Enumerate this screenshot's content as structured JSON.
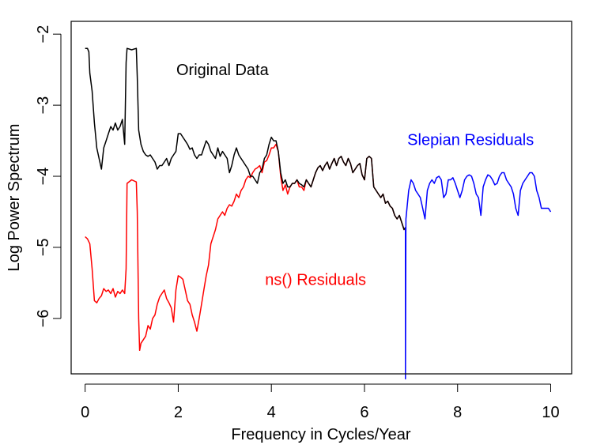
{
  "chart_data": {
    "type": "line",
    "xlabel": "Frequency in Cycles/Year",
    "ylabel": "Log Power Spectrum",
    "xlim": [
      -0.3,
      10.45
    ],
    "ylim": [
      -6.78,
      -1.82
    ],
    "x_ticks": [
      0,
      2,
      4,
      6,
      8,
      10
    ],
    "y_ticks": [
      -2,
      -3,
      -4,
      -5,
      -6
    ],
    "grid": false,
    "annotations": [
      {
        "text": "Original Data",
        "x": 2.95,
        "y": -2.52,
        "color": "#000000"
      },
      {
        "text": "Slepian Residuals",
        "x": 8.28,
        "y": -3.5,
        "color": "#0000ff"
      },
      {
        "text": "ns() Residuals",
        "x": 4.95,
        "y": -5.47,
        "color": "#ff0000"
      }
    ],
    "series": [
      {
        "color": "#ff0000",
        "x": [
          0.0,
          0.05,
          0.1,
          0.15,
          0.2,
          0.25,
          0.3,
          0.35,
          0.4,
          0.45,
          0.5,
          0.55,
          0.6,
          0.65,
          0.7,
          0.75,
          0.8,
          0.85,
          0.88,
          0.9,
          1.0,
          1.1,
          1.12,
          1.15,
          1.17,
          1.2,
          1.25,
          1.3,
          1.35,
          1.4,
          1.45,
          1.5,
          1.55,
          1.6,
          1.65,
          1.7,
          1.75,
          1.8,
          1.85,
          1.9,
          1.95,
          2.0,
          2.05,
          2.1,
          2.15,
          2.2,
          2.25,
          2.3,
          2.35,
          2.4,
          2.45,
          2.5,
          2.55,
          2.6,
          2.65,
          2.7,
          2.75,
          2.8,
          2.85,
          2.9,
          2.95,
          3.0,
          3.05,
          3.1,
          3.15,
          3.2,
          3.25,
          3.3,
          3.35,
          3.4,
          3.45,
          3.5,
          3.55,
          3.6,
          3.65,
          3.7,
          3.75,
          3.8,
          3.85,
          3.9,
          3.95,
          4.0,
          4.05,
          4.1,
          4.15,
          4.2,
          4.25,
          4.3,
          4.35,
          4.4,
          4.45,
          4.5,
          4.55,
          4.6,
          4.65,
          4.7,
          4.75,
          4.8,
          4.85,
          4.9,
          4.95,
          5.0,
          5.05,
          5.1,
          5.15,
          5.2,
          5.25,
          5.3,
          5.35,
          5.4,
          5.45,
          5.5,
          5.55,
          5.6,
          5.65,
          5.7,
          5.75,
          5.8,
          5.85,
          5.9,
          5.95,
          6.0,
          6.05,
          6.1,
          6.15,
          6.2,
          6.25,
          6.3,
          6.35,
          6.4,
          6.45,
          6.5,
          6.55,
          6.6,
          6.65,
          6.7,
          6.75,
          6.8,
          6.85,
          6.88
        ],
        "y": [
          -4.85,
          -4.88,
          -4.95,
          -5.3,
          -5.75,
          -5.78,
          -5.72,
          -5.68,
          -5.58,
          -5.62,
          -5.6,
          -5.65,
          -5.58,
          -5.7,
          -5.62,
          -5.65,
          -5.6,
          -5.65,
          -5.3,
          -4.1,
          -4.05,
          -4.08,
          -4.5,
          -6.0,
          -6.45,
          -6.35,
          -6.3,
          -6.25,
          -6.1,
          -6.15,
          -6.0,
          -5.95,
          -5.8,
          -5.7,
          -5.65,
          -5.6,
          -5.72,
          -5.78,
          -5.85,
          -6.05,
          -5.6,
          -5.4,
          -5.42,
          -5.45,
          -5.6,
          -5.75,
          -5.8,
          -5.95,
          -6.05,
          -6.18,
          -6.0,
          -5.8,
          -5.6,
          -5.4,
          -5.25,
          -4.95,
          -4.85,
          -4.75,
          -4.6,
          -4.55,
          -4.5,
          -4.55,
          -4.45,
          -4.4,
          -4.42,
          -4.35,
          -4.25,
          -4.3,
          -4.2,
          -4.15,
          -4.05,
          -4.0,
          -4.02,
          -3.95,
          -3.9,
          -3.88,
          -3.85,
          -3.95,
          -3.8,
          -3.78,
          -3.7,
          -3.6,
          -3.6,
          -3.55,
          -3.65,
          -4.0,
          -4.2,
          -4.12,
          -4.25,
          -4.15,
          -4.1,
          -4.1,
          -4.05,
          -4.15,
          -4.15,
          -4.2,
          -4.05,
          -4.1,
          -4.15,
          -4.05,
          -3.95,
          -3.88,
          -3.85,
          -3.92,
          -3.85,
          -3.8,
          -3.9,
          -3.82,
          -3.75,
          -3.85,
          -3.75,
          -3.72,
          -3.8,
          -3.85,
          -3.75,
          -3.82,
          -3.95,
          -3.9,
          -3.85,
          -3.82,
          -3.98,
          -4.05,
          -3.75,
          -3.72,
          -3.75,
          -4.15,
          -4.2,
          -4.25,
          -4.3,
          -4.25,
          -4.38,
          -4.35,
          -4.42,
          -4.45,
          -4.55,
          -4.6,
          -4.55,
          -4.65,
          -4.75,
          -4.72
        ]
      },
      {
        "color": "#000000",
        "x": [
          0.0,
          0.05,
          0.08,
          0.1,
          0.15,
          0.2,
          0.25,
          0.3,
          0.35,
          0.4,
          0.45,
          0.5,
          0.55,
          0.6,
          0.65,
          0.7,
          0.75,
          0.8,
          0.85,
          0.88,
          0.9,
          1.0,
          1.1,
          1.12,
          1.15,
          1.2,
          1.25,
          1.3,
          1.35,
          1.4,
          1.45,
          1.5,
          1.55,
          1.6,
          1.65,
          1.7,
          1.75,
          1.8,
          1.85,
          1.9,
          1.95,
          2.0,
          2.05,
          2.1,
          2.15,
          2.2,
          2.25,
          2.3,
          2.35,
          2.4,
          2.45,
          2.5,
          2.55,
          2.6,
          2.65,
          2.7,
          2.75,
          2.8,
          2.85,
          2.9,
          2.95,
          3.0,
          3.05,
          3.1,
          3.15,
          3.2,
          3.25,
          3.3,
          3.35,
          3.4,
          3.45,
          3.5,
          3.55,
          3.6,
          3.65,
          3.7,
          3.75,
          3.8,
          3.85,
          3.9,
          3.95,
          4.0,
          4.05,
          4.1,
          4.15,
          4.2,
          4.25,
          4.3,
          4.35,
          4.4,
          4.45,
          4.5,
          4.55,
          4.6,
          4.65,
          4.7,
          4.75,
          4.8,
          4.85,
          4.9,
          4.95,
          5.0,
          5.05,
          5.1,
          5.15,
          5.2,
          5.25,
          5.3,
          5.35,
          5.4,
          5.45,
          5.5,
          5.55,
          5.6,
          5.65,
          5.7,
          5.75,
          5.8,
          5.85,
          5.9,
          5.95,
          6.0,
          6.05,
          6.1,
          6.15,
          6.2,
          6.25,
          6.3,
          6.35,
          6.4,
          6.45,
          6.5,
          6.55,
          6.6,
          6.65,
          6.7,
          6.75,
          6.8,
          6.85,
          6.88
        ],
        "y": [
          -2.2,
          -2.2,
          -2.25,
          -2.55,
          -2.8,
          -3.25,
          -3.6,
          -3.75,
          -3.9,
          -3.6,
          -3.5,
          -3.4,
          -3.3,
          -3.35,
          -3.25,
          -3.35,
          -3.3,
          -3.2,
          -3.55,
          -2.4,
          -2.2,
          -2.22,
          -2.2,
          -2.6,
          -3.35,
          -3.55,
          -3.65,
          -3.7,
          -3.72,
          -3.7,
          -3.75,
          -3.8,
          -3.9,
          -3.85,
          -3.85,
          -3.8,
          -3.75,
          -3.85,
          -3.75,
          -3.7,
          -3.65,
          -3.4,
          -3.4,
          -3.45,
          -3.5,
          -3.55,
          -3.62,
          -3.6,
          -3.7,
          -3.75,
          -3.7,
          -3.7,
          -3.6,
          -3.5,
          -3.55,
          -3.65,
          -3.7,
          -3.75,
          -3.6,
          -3.72,
          -3.65,
          -3.7,
          -3.75,
          -3.95,
          -3.85,
          -3.7,
          -3.6,
          -3.7,
          -3.75,
          -3.8,
          -3.85,
          -3.9,
          -4.0,
          -4.0,
          -4.05,
          -4.1,
          -3.95,
          -3.9,
          -3.75,
          -3.7,
          -3.55,
          -3.45,
          -3.5,
          -3.5,
          -3.65,
          -3.95,
          -4.1,
          -4.05,
          -4.15,
          -4.15,
          -4.1,
          -4.1,
          -4.05,
          -4.1,
          -4.12,
          -4.15,
          -4.05,
          -4.1,
          -4.15,
          -4.05,
          -3.95,
          -3.88,
          -3.85,
          -3.92,
          -3.85,
          -3.8,
          -3.9,
          -3.82,
          -3.75,
          -3.85,
          -3.75,
          -3.72,
          -3.8,
          -3.85,
          -3.75,
          -3.82,
          -3.95,
          -3.9,
          -3.85,
          -3.82,
          -3.98,
          -4.05,
          -3.75,
          -3.72,
          -3.75,
          -4.15,
          -4.2,
          -4.25,
          -4.3,
          -4.25,
          -4.38,
          -4.35,
          -4.42,
          -4.45,
          -4.55,
          -4.6,
          -4.55,
          -4.65,
          -4.75,
          -4.72
        ]
      },
      {
        "color": "#0000ff",
        "x": [
          6.88,
          6.88,
          6.89,
          6.95,
          7.0,
          7.05,
          7.1,
          7.15,
          7.2,
          7.25,
          7.3,
          7.35,
          7.4,
          7.45,
          7.5,
          7.55,
          7.6,
          7.65,
          7.7,
          7.75,
          7.8,
          7.85,
          7.9,
          7.95,
          8.0,
          8.05,
          8.1,
          8.15,
          8.2,
          8.25,
          8.3,
          8.35,
          8.4,
          8.45,
          8.5,
          8.55,
          8.6,
          8.65,
          8.7,
          8.75,
          8.8,
          8.85,
          8.9,
          8.95,
          9.0,
          9.05,
          9.1,
          9.15,
          9.2,
          9.25,
          9.3,
          9.35,
          9.4,
          9.45,
          9.5,
          9.55,
          9.6,
          9.65,
          9.7,
          9.75,
          9.8,
          9.85,
          9.9,
          9.95,
          10.0
        ],
        "y": [
          -4.72,
          -6.85,
          -4.6,
          -4.2,
          -4.05,
          -4.1,
          -4.2,
          -4.25,
          -4.3,
          -4.45,
          -4.6,
          -4.2,
          -4.1,
          -4.05,
          -4.1,
          -4.02,
          -4.0,
          -4.05,
          -4.3,
          -4.25,
          -4.05,
          -4.05,
          -4.02,
          -4.1,
          -4.2,
          -4.3,
          -4.2,
          -4.05,
          -4.0,
          -3.98,
          -4.0,
          -4.1,
          -4.25,
          -4.3,
          -4.55,
          -4.15,
          -4.05,
          -3.98,
          -4.0,
          -4.05,
          -4.12,
          -4.1,
          -4.0,
          -3.95,
          -3.95,
          -4.05,
          -4.1,
          -4.15,
          -4.25,
          -4.45,
          -4.55,
          -4.2,
          -4.1,
          -4.05,
          -4.0,
          -3.95,
          -3.95,
          -4.0,
          -4.2,
          -4.3,
          -4.45,
          -4.45,
          -4.45,
          -4.45,
          -4.5
        ]
      }
    ]
  }
}
